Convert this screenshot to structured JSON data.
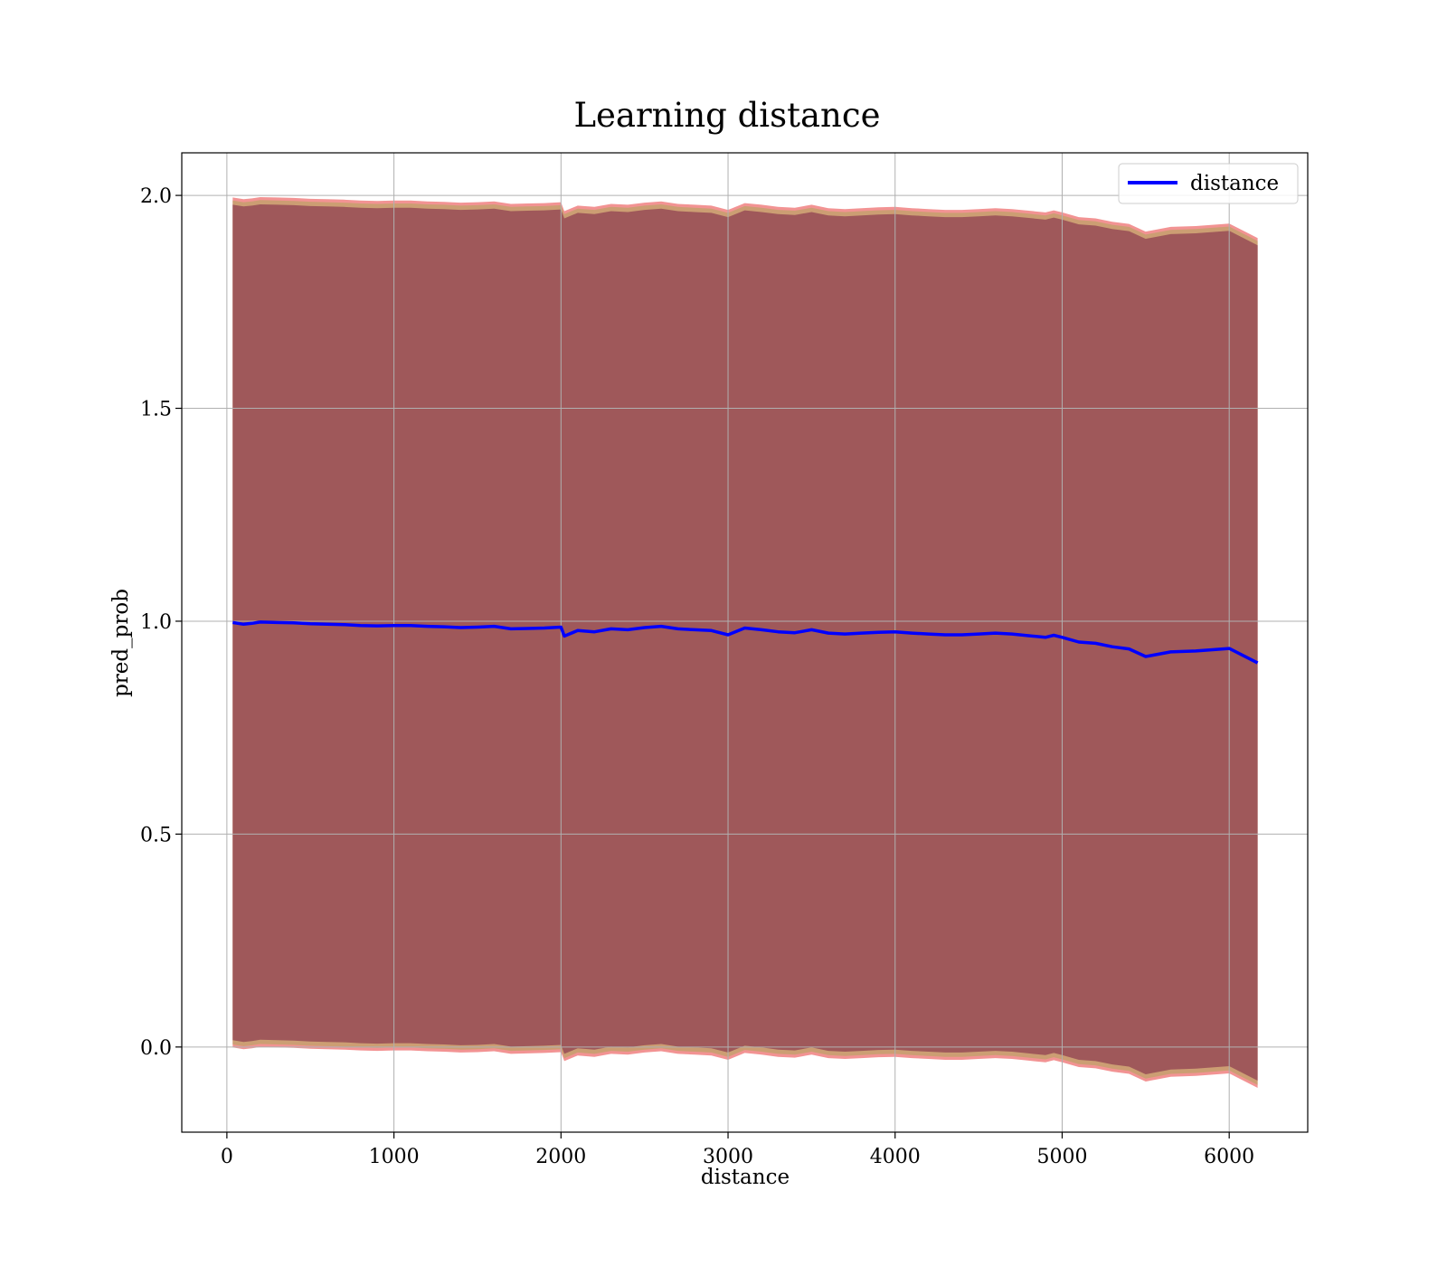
{
  "chart_data": {
    "type": "line",
    "title": "Learning distance",
    "xlabel": "distance",
    "ylabel": "pred_prob",
    "xlim": [
      -270,
      6470
    ],
    "ylim": [
      -0.2,
      2.1
    ],
    "xticks": [
      0,
      1000,
      2000,
      3000,
      4000,
      5000,
      6000
    ],
    "yticks": [
      0.0,
      0.5,
      1.0,
      1.5,
      2.0
    ],
    "xtick_labels": [
      "0",
      "1000",
      "2000",
      "3000",
      "4000",
      "5000",
      "6000"
    ],
    "ytick_labels": [
      "0.0",
      "0.5",
      "1.0",
      "1.5",
      "2.0"
    ],
    "grid": true,
    "legend": {
      "position": "top-right",
      "entries": [
        "distance"
      ]
    },
    "colors": {
      "line": "#0000ff",
      "band_outer": "#f08080",
      "band_mid": "#c8a070",
      "band_inner": "#8b3a50"
    },
    "series": [
      {
        "name": "distance",
        "x": [
          35,
          100,
          150,
          200,
          300,
          400,
          500,
          600,
          700,
          800,
          900,
          1000,
          1100,
          1200,
          1300,
          1400,
          1500,
          1600,
          1700,
          1800,
          1900,
          2000,
          2020,
          2100,
          2200,
          2300,
          2400,
          2500,
          2600,
          2700,
          2800,
          2900,
          3000,
          3100,
          3200,
          3300,
          3400,
          3500,
          3600,
          3700,
          3800,
          3900,
          4000,
          4100,
          4200,
          4300,
          4400,
          4500,
          4600,
          4700,
          4800,
          4900,
          4950,
          5000,
          5100,
          5200,
          5300,
          5400,
          5500,
          5650,
          5800,
          6000,
          6170
        ],
        "y": [
          0.997,
          0.993,
          0.995,
          0.998,
          0.997,
          0.996,
          0.994,
          0.993,
          0.992,
          0.99,
          0.989,
          0.99,
          0.99,
          0.988,
          0.987,
          0.985,
          0.986,
          0.988,
          0.982,
          0.983,
          0.984,
          0.986,
          0.965,
          0.978,
          0.975,
          0.982,
          0.98,
          0.985,
          0.988,
          0.982,
          0.98,
          0.978,
          0.968,
          0.984,
          0.98,
          0.975,
          0.973,
          0.98,
          0.972,
          0.97,
          0.972,
          0.974,
          0.975,
          0.972,
          0.97,
          0.968,
          0.968,
          0.97,
          0.972,
          0.97,
          0.966,
          0.962,
          0.967,
          0.962,
          0.951,
          0.948,
          0.94,
          0.935,
          0.917,
          0.928,
          0.93,
          0.936,
          0.902
        ],
        "upper": [
          1.99,
          1.986,
          1.988,
          1.991,
          1.99,
          1.989,
          1.987,
          1.986,
          1.985,
          1.983,
          1.982,
          1.983,
          1.983,
          1.981,
          1.98,
          1.978,
          1.979,
          1.981,
          1.975,
          1.976,
          1.977,
          1.979,
          1.958,
          1.971,
          1.968,
          1.975,
          1.973,
          1.978,
          1.981,
          1.975,
          1.973,
          1.971,
          1.961,
          1.977,
          1.973,
          1.968,
          1.966,
          1.973,
          1.965,
          1.963,
          1.965,
          1.967,
          1.968,
          1.965,
          1.963,
          1.961,
          1.961,
          1.963,
          1.965,
          1.963,
          1.959,
          1.955,
          1.96,
          1.955,
          1.944,
          1.941,
          1.933,
          1.928,
          1.91,
          1.921,
          1.923,
          1.929,
          1.895
        ],
        "lower": [
          0.004,
          0.0,
          0.002,
          0.005,
          0.004,
          0.003,
          0.001,
          0.0,
          -0.001,
          -0.003,
          -0.004,
          -0.003,
          -0.003,
          -0.005,
          -0.006,
          -0.008,
          -0.007,
          -0.005,
          -0.011,
          -0.01,
          -0.009,
          -0.007,
          -0.028,
          -0.015,
          -0.018,
          -0.011,
          -0.013,
          -0.008,
          -0.005,
          -0.011,
          -0.013,
          -0.015,
          -0.025,
          -0.009,
          -0.013,
          -0.018,
          -0.02,
          -0.013,
          -0.021,
          -0.023,
          -0.021,
          -0.019,
          -0.018,
          -0.021,
          -0.023,
          -0.025,
          -0.025,
          -0.023,
          -0.021,
          -0.023,
          -0.027,
          -0.031,
          -0.026,
          -0.031,
          -0.042,
          -0.045,
          -0.053,
          -0.058,
          -0.076,
          -0.065,
          -0.063,
          -0.057,
          -0.091
        ]
      }
    ]
  }
}
